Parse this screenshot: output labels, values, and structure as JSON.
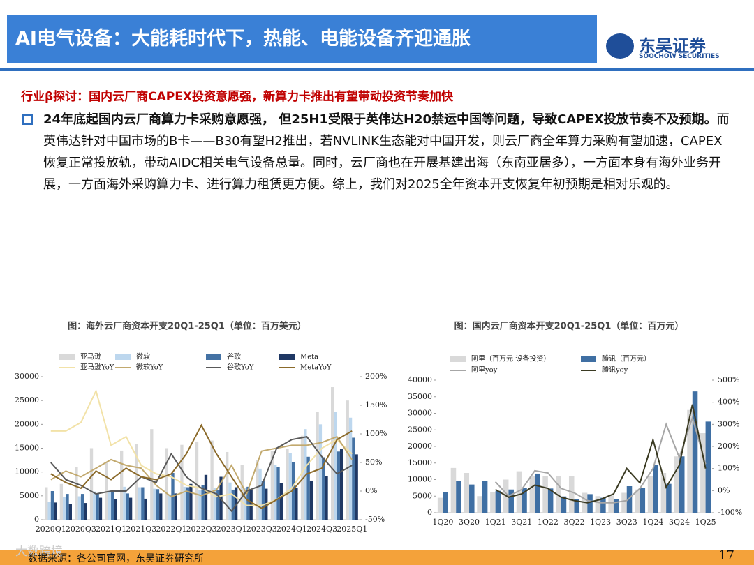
{
  "header": {
    "title": "AI电气设备：大能耗时代下，热能、电能设备齐迎通胀",
    "logo_name": "东吴证券",
    "logo_en": "SOOCHOW SECURITIES"
  },
  "subheading": "行业β探讨：国内云厂商CAPEX投资意愿强，新算力卡推出有望带动投资节奏加快",
  "paragraph": {
    "bold": "24年底起国内云厂商算力卡采购意愿强， 但25H1受限于英伟达H20禁运中国等问题，导致CAPEX投放节奏不及预期。",
    "text": "而英伟达针对中国市场的B卡——B30有望H2推出，若NVLINK生态能对中国开发，则云厂商全年算力采购有望加速，CAPEX恢复正常投放轨，带动AIDC相关电气设备总量。同时，云厂商也在开展基建出海（东南亚居多），一方面本身有海外业务开展，一方面海外采购算力卡、进行算力租赁更方便。综上，我们对2025全年资本开支恢复年初预期是相对乐观的。"
  },
  "chart_data": [
    {
      "type": "combo",
      "title": "图：海外云厂商资本开支20Q1-25Q1（单位：百万美元）",
      "categories": [
        "2020Q1",
        null,
        "2020Q3",
        null,
        "2021Q1",
        null,
        "2021Q3",
        null,
        "2022Q1",
        null,
        "2022Q3",
        null,
        "2023Q1",
        null,
        "2023Q3",
        null,
        "2024Q1",
        null,
        "2024Q3",
        null,
        "2025Q1"
      ],
      "ylim": [
        0,
        30000
      ],
      "yticks": [
        0,
        5000,
        10000,
        15000,
        20000,
        25000,
        30000
      ],
      "y2lim": [
        -50,
        200
      ],
      "y2ticks": [
        {
          "value": -50,
          "label": "-50%"
        },
        {
          "value": 0,
          "label": "0%"
        },
        {
          "value": 50,
          "label": "50%"
        },
        {
          "value": 100,
          "label": "100%"
        },
        {
          "value": 150,
          "label": "150%"
        },
        {
          "value": 200,
          "label": "200%"
        }
      ],
      "series": [
        {
          "name": "亚马逊",
          "type": "bar",
          "color": "#d9d9d9",
          "values": [
            6800,
            7500,
            11000,
            15000,
            12000,
            14500,
            15800,
            19000,
            15000,
            15700,
            16400,
            16600,
            14200,
            11500,
            12500,
            14400,
            14900,
            17600,
            22600,
            27800,
            25000
          ]
        },
        {
          "name": "微软",
          "type": "bar",
          "color": "#bdd7ee",
          "values": [
            3800,
            4700,
            4900,
            5900,
            5900,
            6900,
            6800,
            6500,
            5300,
            6900,
            6300,
            6600,
            7800,
            6600,
            10700,
            11500,
            14000,
            19000,
            20000,
            22600,
            21400
          ]
        },
        {
          "name": "谷歌",
          "type": "bar",
          "color": "#4472a4",
          "values": [
            6000,
            5400,
            5400,
            5500,
            6000,
            5500,
            6800,
            6400,
            9800,
            6800,
            7300,
            6300,
            6300,
            6900,
            8100,
            11000,
            12000,
            13200,
            13100,
            14300,
            17200
          ]
        },
        {
          "name": "Meta",
          "type": "bar",
          "color": "#1f3864",
          "values": [
            3600,
            3300,
            3500,
            4600,
            4300,
            4600,
            4400,
            5500,
            5500,
            7500,
            9400,
            9000,
            6800,
            6300,
            6500,
            7700,
            6700,
            8200,
            9200,
            14800,
            13700
          ]
        },
        {
          "name": "亚马逊YoY",
          "type": "line",
          "axis": "y2",
          "color": "#f2e2a8",
          "values": [
            105,
            105,
            120,
            175,
            80,
            95,
            45,
            30,
            25,
            10,
            5,
            -10,
            -5,
            -25,
            -25,
            -15,
            5,
            45,
            75,
            90,
            65
          ]
        },
        {
          "name": "微软YoY",
          "type": "line",
          "axis": "y2",
          "color": "#c2a96e",
          "values": [
            20,
            35,
            25,
            40,
            55,
            45,
            40,
            10,
            -10,
            0,
            -8,
            2,
            45,
            -5,
            70,
            75,
            80,
            80,
            85,
            95,
            55
          ]
        },
        {
          "name": "谷歌YoY",
          "type": "line",
          "axis": "y2",
          "color": "#595959",
          "values": [
            50,
            20,
            10,
            -5,
            0,
            0,
            25,
            15,
            65,
            25,
            5,
            -5,
            -35,
            0,
            10,
            75,
            90,
            95,
            60,
            30,
            45
          ]
        },
        {
          "name": "MetaYoY",
          "type": "line",
          "axis": "y2",
          "color": "#8b6a2a",
          "values": [
            30,
            15,
            5,
            35,
            20,
            40,
            25,
            20,
            30,
            65,
            115,
            65,
            25,
            -15,
            -30,
            -15,
            0,
            30,
            40,
            90,
            105
          ]
        }
      ]
    },
    {
      "type": "combo",
      "title": "图：国内云厂商资本开支20Q1-25Q1（单位：百万元）",
      "categories": [
        "1Q20",
        null,
        "3Q20",
        null,
        "1Q21",
        null,
        "3Q21",
        null,
        "1Q22",
        null,
        "3Q22",
        null,
        "1Q23",
        null,
        "3Q23",
        null,
        "1Q24",
        null,
        "3Q24",
        null,
        "1Q25"
      ],
      "ylim": [
        0,
        40000
      ],
      "yticks": [
        0,
        5000,
        10000,
        15000,
        20000,
        25000,
        30000,
        35000,
        40000
      ],
      "y2lim": [
        -100,
        500
      ],
      "y2ticks": [
        {
          "value": -100,
          "label": "-100%"
        },
        {
          "value": 0,
          "label": "0%"
        },
        {
          "value": 100,
          "label": "100%"
        },
        {
          "value": 200,
          "label": "200%"
        },
        {
          "value": 300,
          "label": "300%"
        },
        {
          "value": 400,
          "label": "400%"
        },
        {
          "value": 500,
          "label": "500%"
        }
      ],
      "series": [
        {
          "name": "阿里（百万元-设备投资）",
          "type": "bar",
          "color": "#d9d9d9",
          "values": [
            4500,
            13500,
            12000,
            5000,
            6200,
            10000,
            12500,
            11000,
            11000,
            11000,
            11000,
            6000,
            5000,
            5200,
            6000,
            7000,
            11000,
            12000,
            17000,
            31000,
            24000
          ]
        },
        {
          "name": "腾讯（百万元）",
          "type": "bar",
          "color": "#3f6fa3",
          "values": [
            6200,
            9500,
            8500,
            9500,
            6600,
            7000,
            7400,
            11800,
            7300,
            4900,
            4000,
            5600,
            4500,
            4200,
            8000,
            7500,
            14500,
            8700,
            17000,
            36600,
            27500
          ]
        },
        {
          "name": "阿里yoy",
          "type": "line",
          "axis": "y2",
          "color": "#a6a6a6",
          "values": [
            null,
            null,
            null,
            null,
            40,
            -25,
            5,
            90,
            80,
            10,
            -10,
            -45,
            -55,
            -55,
            -45,
            10,
            100,
            300,
            150,
            330,
            120
          ]
        },
        {
          "name": "腾讯yoy",
          "type": "line",
          "axis": "y2",
          "color": "#3a3a22",
          "values": [
            null,
            null,
            null,
            null,
            5,
            -30,
            -15,
            25,
            10,
            -30,
            -45,
            -55,
            -40,
            -15,
            100,
            35,
            230,
            15,
            115,
            390,
            100
          ]
        }
      ]
    }
  ],
  "watermark": "大数跨境",
  "source": "数据来源：各公司官网，东吴证券研究所",
  "page_number": "17"
}
